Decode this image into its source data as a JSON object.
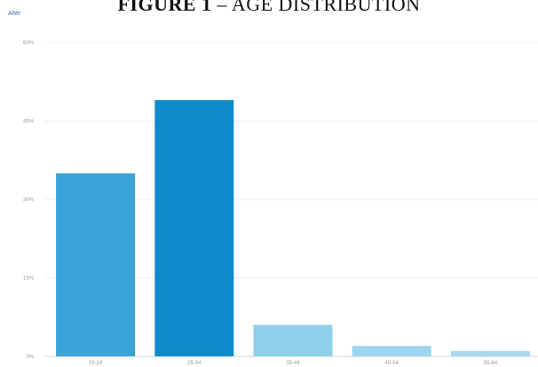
{
  "figure": {
    "title_lead": "FIGURE 1",
    "title_rest": " – AGE DISTRIBUTION",
    "panel_label": "Alter"
  },
  "chart_data": {
    "type": "bar",
    "categories": [
      "18-24",
      "25-34",
      "35-44",
      "45-54",
      "55-64"
    ],
    "values": [
      35,
      49,
      6,
      2,
      1
    ],
    "colors": [
      "#3aa3d8",
      "#0c8ac9",
      "#8ecfea",
      "#9dd5ee",
      "#a8d9f0"
    ],
    "ylim": [
      0,
      60
    ],
    "yticks": [
      0,
      15,
      30,
      45,
      60
    ],
    "ytick_labels": [
      "0%",
      "15%",
      "30%",
      "45%",
      "60%"
    ],
    "grid": true,
    "xlabel": "",
    "ylabel": ""
  }
}
